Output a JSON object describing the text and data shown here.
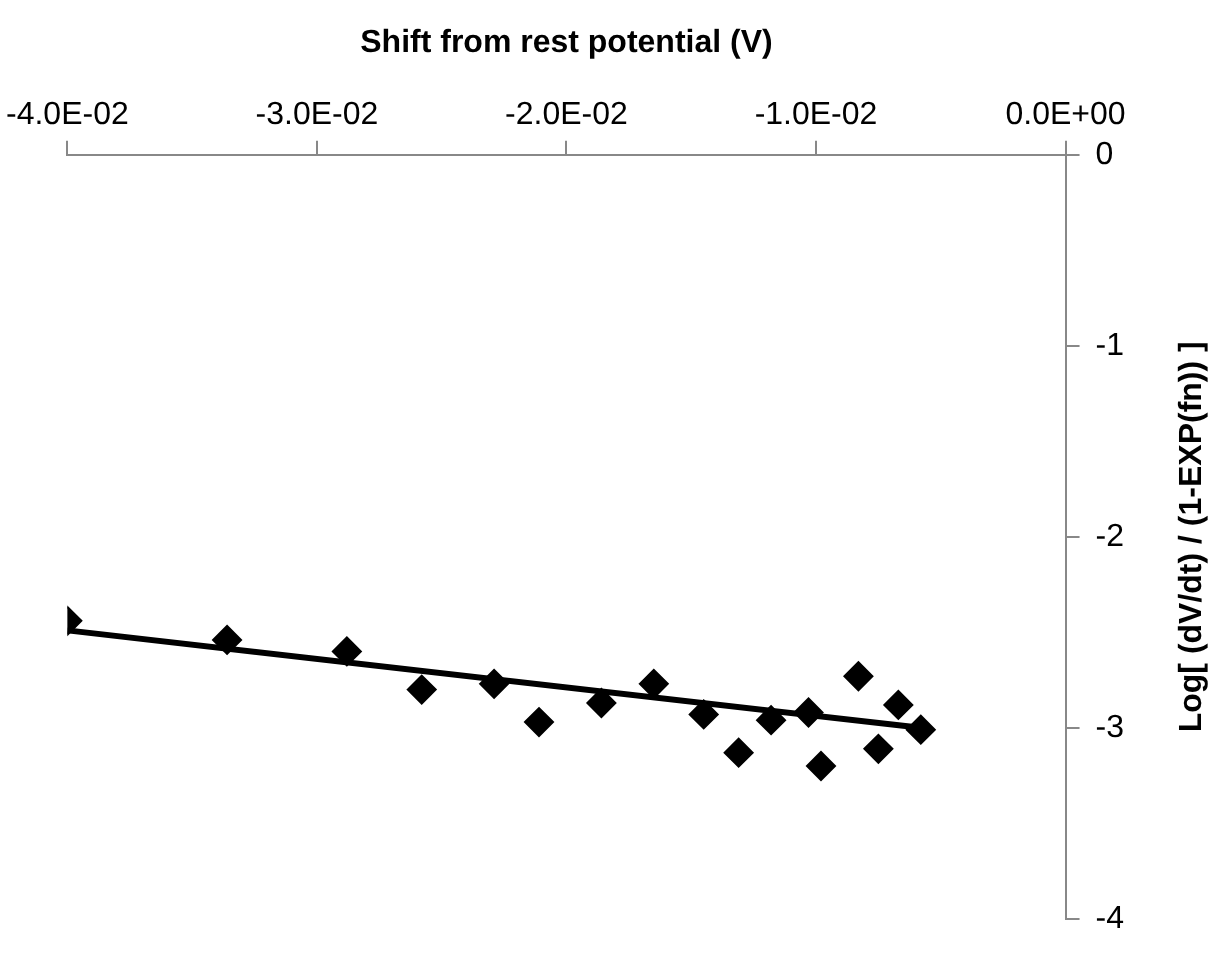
{
  "chart_data": {
    "type": "scatter",
    "xlabel": "Shift from rest potential (V)",
    "ylabel": "Log[ (dV/dt) / (1-EXP(fn)) ]",
    "xlim": [
      -0.04,
      0
    ],
    "xticks": [
      {
        "value": -0.04,
        "label": "-4.0E-02"
      },
      {
        "value": -0.03,
        "label": "-3.0E-02"
      },
      {
        "value": -0.02,
        "label": "-2.0E-02"
      },
      {
        "value": -0.01,
        "label": "-1.0E-02"
      },
      {
        "value": 0,
        "label": "0.0E+00"
      }
    ],
    "ylim": [
      -4,
      0
    ],
    "yticks": [
      -4,
      -3,
      -2,
      -1,
      0
    ],
    "grid": false,
    "legend": false,
    "series": [
      {
        "marker": "diamond",
        "color": "#000000",
        "x": [
          -0.04,
          -0.0336,
          -0.0288,
          -0.0258,
          -0.0229,
          -0.0211,
          -0.0186,
          -0.0165,
          -0.0145,
          -0.0131,
          -0.0118,
          -0.0103,
          -0.0098,
          -0.0083,
          -0.0075,
          -0.0067,
          -0.0058
        ],
        "values": [
          -2.44,
          -2.54,
          -2.6,
          -2.8,
          -2.77,
          -2.97,
          -2.87,
          -2.77,
          -2.93,
          -3.13,
          -2.96,
          -2.92,
          -3.2,
          -2.73,
          -3.11,
          -2.88,
          -3.01
        ]
      },
      {
        "type": "line",
        "marker": "none",
        "line_style": "solid",
        "color": "#000000",
        "x": [
          -0.04,
          -0.0058
        ],
        "values": [
          -2.49,
          -3.0
        ]
      }
    ]
  }
}
